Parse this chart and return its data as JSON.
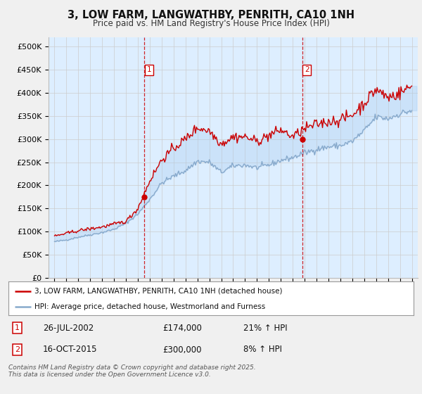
{
  "title": "3, LOW FARM, LANGWATHBY, PENRITH, CA10 1NH",
  "subtitle": "Price paid vs. HM Land Registry's House Price Index (HPI)",
  "background_color": "#f0f0f0",
  "plot_bg_color": "#ddeeff",
  "red_line_color": "#cc0000",
  "blue_line_color": "#88aacc",
  "vline_color": "#cc0000",
  "sale1_date_num": 2002.56,
  "sale1_price": 174000,
  "sale1_label": "26-JUL-2002",
  "sale1_pct": "21%",
  "sale2_date_num": 2015.79,
  "sale2_price": 300000,
  "sale2_label": "16-OCT-2015",
  "sale2_pct": "8%",
  "ylabel_ticks": [
    0,
    50000,
    100000,
    150000,
    200000,
    250000,
    300000,
    350000,
    400000,
    450000,
    500000
  ],
  "ylabel_labels": [
    "£0",
    "£50K",
    "£100K",
    "£150K",
    "£200K",
    "£250K",
    "£300K",
    "£350K",
    "£400K",
    "£450K",
    "£500K"
  ],
  "xlim": [
    1994.5,
    2025.5
  ],
  "ylim": [
    0,
    520000
  ],
  "legend_line1": "3, LOW FARM, LANGWATHBY, PENRITH, CA10 1NH (detached house)",
  "legend_line2": "HPI: Average price, detached house, Westmorland and Furness",
  "footer": "Contains HM Land Registry data © Crown copyright and database right 2025.\nThis data is licensed under the Open Government Licence v3.0.",
  "xticks": [
    1995,
    1996,
    1997,
    1998,
    1999,
    2000,
    2001,
    2002,
    2003,
    2004,
    2005,
    2006,
    2007,
    2008,
    2009,
    2010,
    2011,
    2012,
    2013,
    2014,
    2015,
    2016,
    2017,
    2018,
    2019,
    2020,
    2021,
    2022,
    2023,
    2024,
    2025
  ]
}
